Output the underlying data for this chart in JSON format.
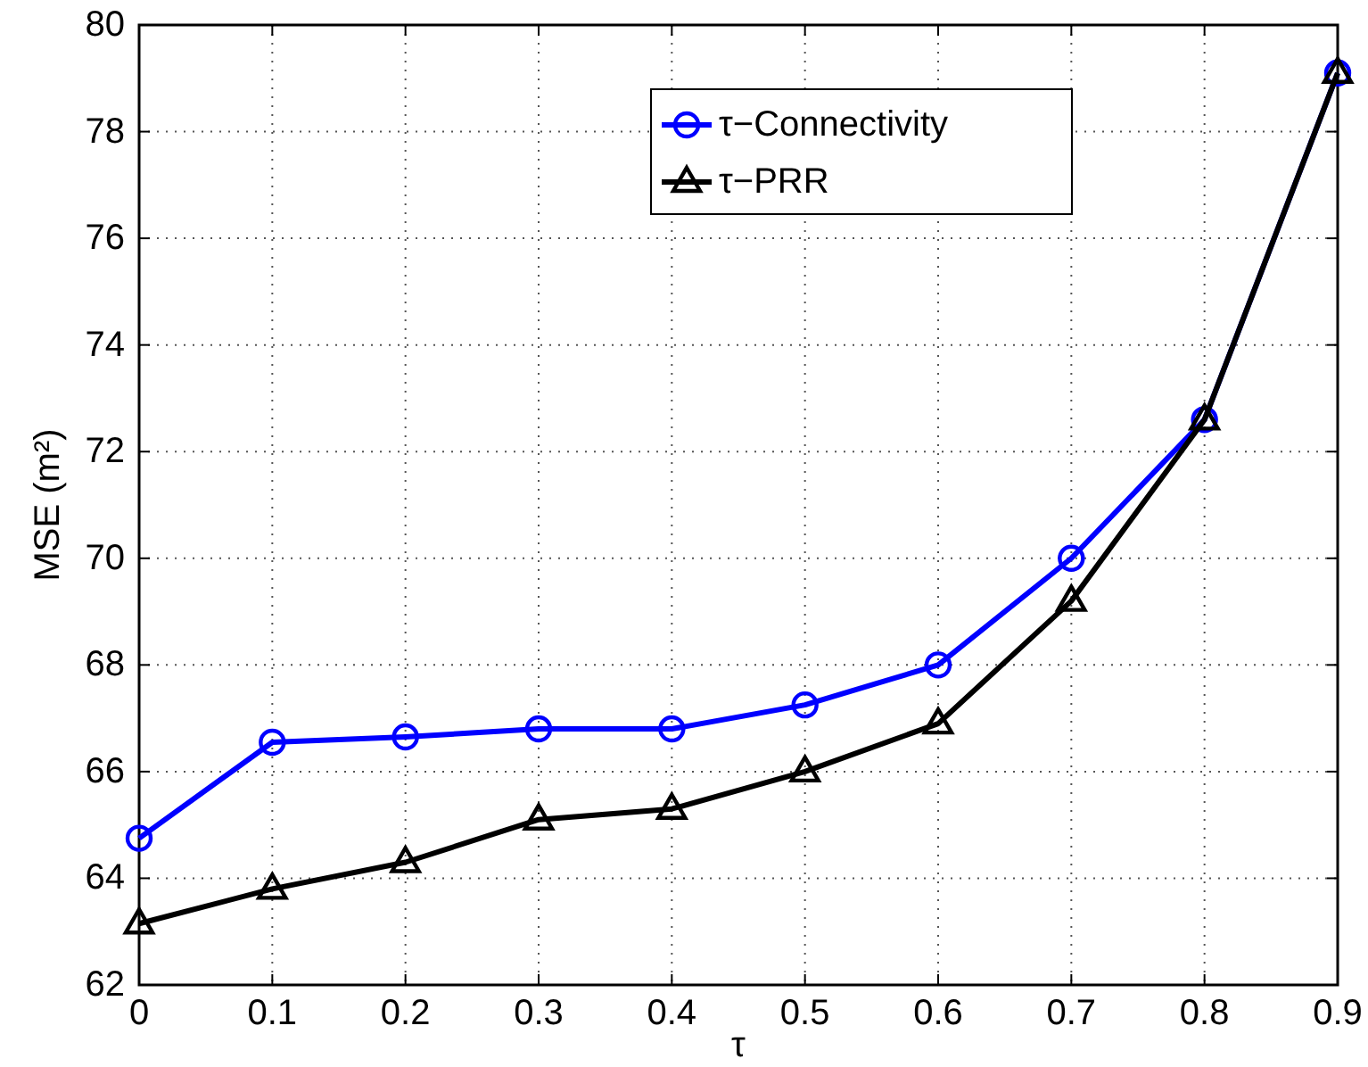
{
  "chart_data": {
    "type": "line",
    "xlabel": "τ",
    "ylabel": "MSE (m²)",
    "x": [
      0,
      0.1,
      0.2,
      0.3,
      0.4,
      0.5,
      0.6,
      0.7,
      0.8,
      0.9
    ],
    "xlim": [
      0,
      0.9
    ],
    "xticks": [
      0,
      0.1,
      0.2,
      0.3,
      0.4,
      0.5,
      0.6,
      0.7,
      0.8,
      0.9
    ],
    "ylim": [
      62,
      80
    ],
    "yticks": [
      62,
      64,
      66,
      68,
      70,
      72,
      74,
      76,
      78,
      80
    ],
    "grid": true,
    "legend": "top",
    "line_style": "solid",
    "series": [
      {
        "name": "τ−Connectivity",
        "color": "#0000ff",
        "marker": "circle",
        "values": [
          64.75,
          66.55,
          66.65,
          66.8,
          66.8,
          67.25,
          68.0,
          70.0,
          72.6,
          79.1
        ]
      },
      {
        "name": "τ−PRR",
        "color": "#000000",
        "marker": "triangle",
        "values": [
          63.15,
          63.8,
          64.3,
          65.1,
          65.3,
          66.0,
          66.9,
          69.2,
          72.6,
          79.1
        ]
      }
    ]
  }
}
